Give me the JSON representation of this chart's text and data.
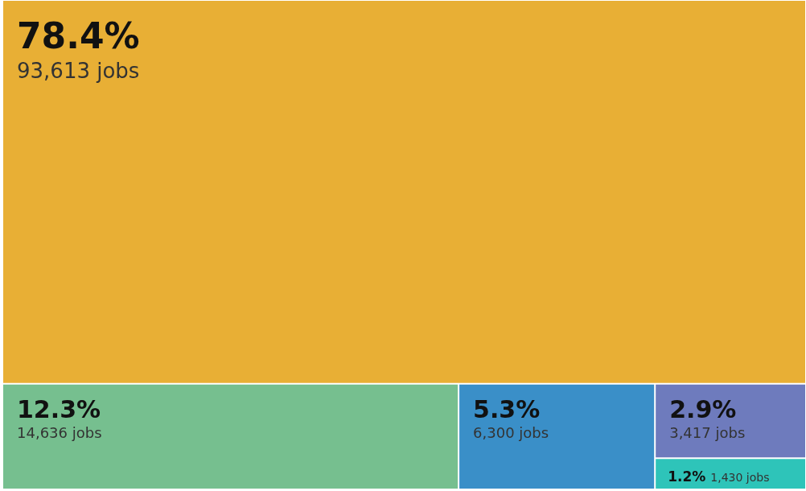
{
  "chart_data": {
    "type": "other",
    "categories": [
      null,
      null,
      null,
      null,
      null
    ],
    "colors": [
      "#e8af35",
      "#76bf8f",
      "#3a8fc8",
      "#6e7bbd",
      "#2ec4b9"
    ],
    "values": [
      93613,
      14636,
      6300,
      3417,
      1430
    ],
    "value_labels": [
      "93,613 jobs",
      "14,636 jobs",
      "6,300 jobs",
      "3,417 jobs",
      "1,430 jobs"
    ],
    "annotations": [
      "78.4%",
      "12.3%",
      "5.3%",
      "2.9%",
      "1.2%"
    ]
  }
}
